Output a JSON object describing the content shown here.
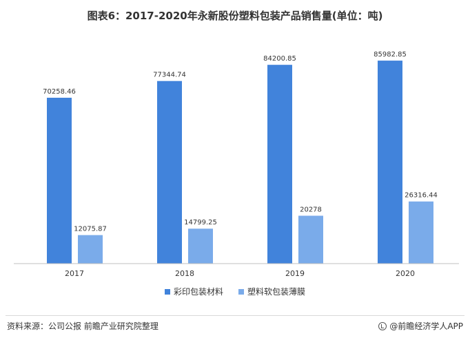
{
  "chart_data": {
    "type": "bar",
    "title": "图表6：2017-2020年永新股份塑料包装产品销售量(单位：吨)",
    "categories": [
      "2017",
      "2018",
      "2019",
      "2020"
    ],
    "series": [
      {
        "name": "彩印包装材料",
        "color": "#4183db",
        "values": [
          70258.46,
          77344.74,
          84200.85,
          85982.85
        ],
        "labels": [
          "70258.46",
          "77344.74",
          "84200.85",
          "85982.85"
        ]
      },
      {
        "name": "塑料软包装薄膜",
        "color": "#7aabea",
        "values": [
          12075.87,
          14799.25,
          20278,
          26316.44
        ],
        "labels": [
          "12075.87",
          "14799.25",
          "20278",
          "26316.44"
        ]
      }
    ],
    "ylim": [
      0,
      100000
    ],
    "grid": false,
    "legend": "bottom"
  },
  "footer": {
    "source": "资料来源：公司公报 前瞻产业研究院整理",
    "app_credit": "@前瞻经济学人APP"
  }
}
